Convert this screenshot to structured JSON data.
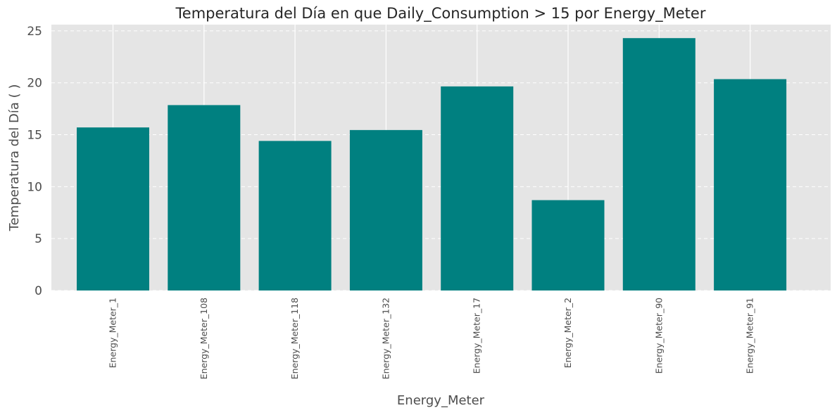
{
  "chart_data": {
    "type": "bar",
    "title": "Temperatura del Día en que Daily_Consumption > 15 por Energy_Meter",
    "xlabel": "Energy_Meter",
    "ylabel": "Temperatura del Día ( )",
    "categories": [
      "Energy_Meter_1",
      "Energy_Meter_108",
      "Energy_Meter_118",
      "Energy_Meter_132",
      "Energy_Meter_17",
      "Energy_Meter_2",
      "Energy_Meter_90",
      "Energy_Meter_91"
    ],
    "values": [
      15.7,
      17.85,
      14.4,
      15.45,
      19.65,
      8.7,
      24.3,
      20.35
    ],
    "ylim": [
      0,
      25.6
    ],
    "yticks": [
      0,
      5,
      10,
      15,
      20,
      25
    ],
    "grid": true,
    "colors": {
      "bar": "#008080",
      "plot_background": "#e5e5e5",
      "grid": "#ffffff"
    }
  }
}
